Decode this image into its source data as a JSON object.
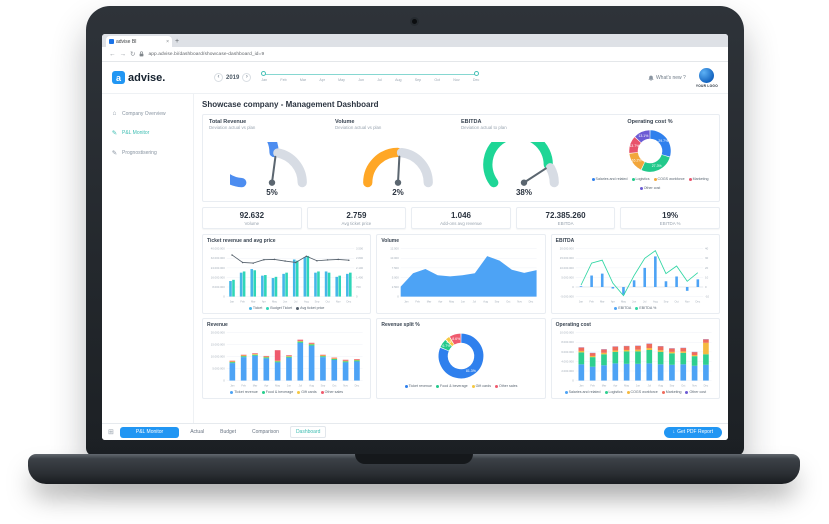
{
  "browser": {
    "tab_title": "advise BI",
    "tab_close": "×",
    "new_tab_button": "+",
    "back": "←",
    "forward": "→",
    "reload": "↻",
    "url": "app.advise.bi/dashboard/showcase-dashboard_id=9"
  },
  "header": {
    "logo_mark": "a",
    "logo_text": "advise.",
    "prev_year": "‹",
    "year": "2019",
    "next_year": "›",
    "months": [
      "Jan",
      "Feb",
      "Mar",
      "Apr",
      "May",
      "Jun",
      "Jul",
      "Aug",
      "Sep",
      "Oct",
      "Nov",
      "Dec"
    ],
    "whats_new": "What's new ?",
    "your_logo": "YOUR LOGO"
  },
  "sidebar": {
    "items": [
      {
        "label": "Company Overview",
        "icon": "⌂"
      },
      {
        "label": "P&L Monitor",
        "icon": "✎"
      },
      {
        "label": "Prognostisering",
        "icon": "✎"
      }
    ]
  },
  "main": {
    "page_title": "Showcase company - Management Dashboard"
  },
  "gauges": [
    {
      "title": "Total Revenue",
      "subtitle": "Deviation actual vs plan",
      "value": "5%",
      "pct": 5,
      "color": "#4d8df0"
    },
    {
      "title": "Volume",
      "subtitle": "Deviation actual vs plan",
      "value": "2%",
      "pct": 2,
      "color": "#ffa726"
    },
    {
      "title": "EBITDA",
      "subtitle": "Deviation actual to plan",
      "value": "38%",
      "pct": 38,
      "color": "#1ed696"
    }
  ],
  "kpis": [
    {
      "value": "92.632",
      "label": "Volume"
    },
    {
      "value": "2.759",
      "label": "Avg ticket price"
    },
    {
      "value": "1.046",
      "label": "Add-ons avg revenue"
    },
    {
      "value": "72.385.260",
      "label": "EBITDA"
    },
    {
      "value": "19%",
      "label": "EBITDA %"
    }
  ],
  "footer": {
    "apps_icon": "⊞",
    "monitor_button": "P&L Monitor",
    "tabs": [
      "Actual",
      "Budget",
      "Comparison",
      "Dashboard"
    ],
    "active_tab": "Dashboard",
    "pdf_icon": "↓",
    "pdf_button": "Get PDF Report"
  },
  "chart_data": [
    {
      "type": "pie",
      "title": "Operating cost %",
      "labels": [
        "Salaries and related",
        "Logistics",
        "COGS workforce",
        "Marketing",
        "Other cost"
      ],
      "values": [
        29.7,
        27.3,
        16.2,
        13.7,
        13.1
      ],
      "slice_labels": [
        "29.7%",
        "27.3%",
        "16.2%",
        "13.7%",
        "13.1%"
      ],
      "colors": [
        "#2f80ed",
        "#22c98b",
        "#f2a63b",
        "#e8536b",
        "#6c5bd4"
      ],
      "legend_position": "bottom"
    },
    {
      "type": "bar",
      "title": "Ticket revenue and avg price",
      "categories": [
        "Jan",
        "Feb",
        "Mar",
        "Apr",
        "May",
        "Jun",
        "Jul",
        "Aug",
        "Sep",
        "Oct",
        "Nov",
        "Dec"
      ],
      "unit": "millions",
      "series": [
        {
          "name": "Ticket",
          "type": "bar",
          "color": "#45b7e8",
          "values": [
            13,
            20,
            23,
            17.5,
            15.5,
            19,
            31,
            33,
            20,
            21,
            16.5,
            19
          ]
        },
        {
          "name": "Budget Ticket",
          "type": "bar",
          "color": "#2fd6b8",
          "values": [
            14,
            21,
            22,
            18,
            16.5,
            20,
            30,
            34,
            21,
            20,
            17.5,
            20
          ]
        },
        {
          "name": "Avg ticket price",
          "type": "line",
          "color": "#55606b",
          "axis": "right",
          "dots": true,
          "values": [
            3.05,
            2.5,
            2.45,
            2.7,
            2.72,
            2.6,
            2.5,
            2.95,
            2.62,
            2.68,
            2.72,
            2.66
          ]
        }
      ],
      "ylim": [
        0,
        40
      ],
      "yticks": [
        "40.000.000",
        "32.000.000",
        "24.000.000",
        "16.000.000",
        "8.000.000",
        "0"
      ],
      "y2lim": [
        0,
        3.5
      ],
      "y2ticks": [
        "3.500",
        "2.800",
        "2.100",
        "1.400",
        "700",
        "0"
      ],
      "legend_position": "bottom"
    },
    {
      "type": "area",
      "title": "Volume",
      "color": "#4da3f5",
      "categories": [
        "Jan",
        "Feb",
        "Mar",
        "Apr",
        "May",
        "Jun",
        "Jul",
        "Aug",
        "Sep",
        "Oct",
        "Nov",
        "Dec"
      ],
      "values": [
        2600,
        6100,
        7200,
        5600,
        5300,
        5600,
        6100,
        10600,
        9400,
        7000,
        6200,
        6900
      ],
      "ylim": [
        0,
        12500
      ],
      "yticks": [
        "12.500",
        "10.000",
        "7.500",
        "5.000",
        "2.500",
        "0"
      ]
    },
    {
      "type": "bar",
      "title": "EBITDA",
      "categories": [
        "Jan",
        "Feb",
        "Mar",
        "Apr",
        "May",
        "Jun",
        "Jul",
        "Aug",
        "Sep",
        "Oct",
        "Nov",
        "Dec"
      ],
      "unit": "millions",
      "series": [
        {
          "name": "EBITDA",
          "type": "bar",
          "color": "#4da3f5",
          "values": [
            0.4,
            6,
            7,
            -0.8,
            -4,
            3.5,
            10,
            16,
            3,
            5.5,
            -2,
            4
          ]
        },
        {
          "name": "EBITDA %",
          "type": "line",
          "color": "#2fd6a3",
          "axis": "right",
          "values": [
            2,
            25,
            28,
            4,
            -9,
            12,
            30,
            38,
            14,
            22,
            6,
            15
          ]
        }
      ],
      "ylim": [
        -5,
        20
      ],
      "yticks": [
        "20.000.000",
        "15.000.000",
        "10.000.000",
        "5.000.000",
        "0",
        "-5.000.000"
      ],
      "y2lim": [
        -10,
        40
      ],
      "y2ticks": [
        "40",
        "30",
        "20",
        "10",
        "0",
        "-10"
      ],
      "legend_position": "bottom"
    },
    {
      "type": "stacked-bar",
      "title": "Revenue",
      "categories": [
        "Jan",
        "Feb",
        "Mar",
        "Apr",
        "May",
        "Jun",
        "Jul",
        "Aug",
        "Sep",
        "Oct",
        "Nov",
        "Dec"
      ],
      "unit": "millions",
      "series": [
        {
          "name": "Ticket revenue",
          "color": "#4da3f5",
          "values": [
            7.3,
            9.8,
            10.4,
            9.3,
            7.6,
            9.6,
            15.8,
            14.6,
            9.8,
            8.6,
            7.6,
            8.0
          ]
        },
        {
          "name": "Food & beverage",
          "color": "#27cf8d",
          "values": [
            0.4,
            0.4,
            0.4,
            0.4,
            0.4,
            0.4,
            0.5,
            0.5,
            0.4,
            0.4,
            0.4,
            0.4
          ]
        },
        {
          "name": "Gift cards",
          "color": "#f5c842",
          "values": [
            0.3,
            0.3,
            0.3,
            0.3,
            0.3,
            0.3,
            0.3,
            0.3,
            0.3,
            0.3,
            0.3,
            0.3
          ]
        },
        {
          "name": "Other sales",
          "color": "#ef5b6e",
          "values": [
            0.3,
            0.3,
            0.3,
            0.3,
            4.4,
            0.3,
            0.5,
            0.4,
            0.3,
            0.3,
            0.4,
            0.3
          ]
        }
      ],
      "ylim": [
        0,
        20
      ],
      "yticks": [
        "20.000.000",
        "15.000.000",
        "10.000.000",
        "5.000.000",
        "0"
      ],
      "legend_position": "bottom"
    },
    {
      "type": "pie",
      "title": "Revenue split %",
      "labels": [
        "Ticket revenue",
        "Food & beverage",
        "Gift cards",
        "Other sales"
      ],
      "values": [
        81.3,
        6.7,
        3.4,
        8.6
      ],
      "slice_labels": [
        "81.3%",
        "6.7%",
        "3.4%",
        "8.6%"
      ],
      "colors": [
        "#2f80ed",
        "#22c98b",
        "#f5c842",
        "#ef5b6e"
      ],
      "legend_position": "bottom"
    },
    {
      "type": "stacked-bar",
      "title": "Operating cost",
      "categories": [
        "Jan",
        "Feb",
        "Mar",
        "Apr",
        "May",
        "Jun",
        "Jul",
        "Aug",
        "Sep",
        "Oct",
        "Nov",
        "Dec"
      ],
      "unit": "millions",
      "series": [
        {
          "name": "Salaries and related",
          "color": "#4da3f5",
          "values": [
            3.4,
            2.9,
            3.2,
            3.6,
            3.5,
            3.5,
            3.6,
            3.4,
            3.3,
            3.4,
            3.1,
            3.3
          ]
        },
        {
          "name": "Logistics",
          "color": "#2ecf8f",
          "values": [
            2.5,
            2.0,
            2.3,
            2.4,
            2.6,
            2.6,
            2.8,
            2.6,
            2.4,
            2.4,
            2.0,
            2.2
          ]
        },
        {
          "name": "COGS workforce",
          "color": "#f5b93f",
          "values": [
            0.3,
            0.25,
            0.3,
            0.3,
            0.3,
            0.35,
            0.4,
            0.35,
            0.3,
            0.3,
            0.25,
            2.4
          ]
        },
        {
          "name": "Marketing",
          "color": "#ef6b5c",
          "values": [
            0.7,
            0.6,
            0.7,
            0.8,
            0.8,
            0.8,
            0.9,
            0.8,
            0.7,
            0.7,
            0.6,
            0.7
          ]
        },
        {
          "name": "Other cost",
          "color": "#6c5bd4",
          "values": [
            0.05,
            0.05,
            0.05,
            0.05,
            0.05,
            0.05,
            0.05,
            0.05,
            0.05,
            0.05,
            0.05,
            0.05
          ]
        }
      ],
      "ylim": [
        0,
        10
      ],
      "yticks": [
        "10.000.000",
        "8.000.000",
        "6.000.000",
        "4.000.000",
        "2.000.000",
        "0"
      ],
      "legend_position": "bottom"
    }
  ]
}
